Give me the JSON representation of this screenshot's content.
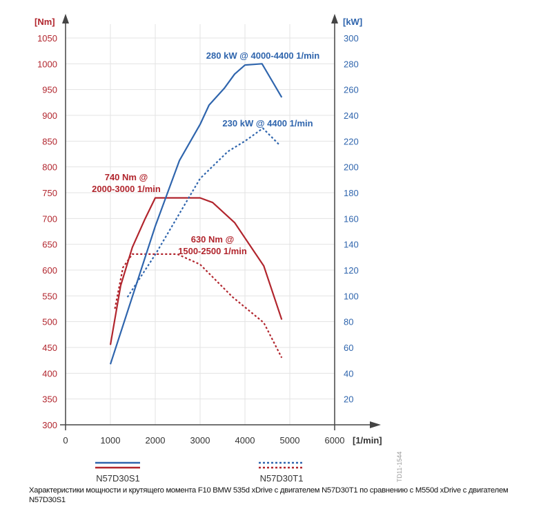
{
  "chart_data": {
    "type": "line",
    "xlabel": "[1/min]",
    "ylabel_left": "[Nm]",
    "ylabel_right": "[kW]",
    "xlim": [
      0,
      6000
    ],
    "ylim_left": [
      300,
      1050
    ],
    "ylim_right": [
      0,
      300
    ],
    "x_ticks": [
      "0",
      "1000",
      "2000",
      "3000",
      "4000",
      "5000",
      "6000"
    ],
    "y_left_ticks": [
      "300",
      "350",
      "400",
      "450",
      "500",
      "550",
      "600",
      "650",
      "700",
      "750",
      "800",
      "850",
      "900",
      "950",
      "1000",
      "1050"
    ],
    "y_right_ticks": [
      "20",
      "40",
      "60",
      "80",
      "100",
      "120",
      "140",
      "160",
      "180",
      "200",
      "220",
      "240",
      "260",
      "280",
      "300"
    ],
    "grid": true,
    "colors": {
      "torque": "#b1252d",
      "power": "#2f65ad",
      "left_ticks": "#b1252d",
      "right_ticks": "#2f65ad"
    },
    "series": [
      {
        "name": "N57D30S1 torque",
        "axis": "left",
        "style": "solid",
        "color": "#b1252d",
        "x": [
          1000,
          1230,
          1490,
          1770,
          2000,
          3000,
          3280,
          3770,
          4420,
          4820
        ],
        "y": [
          455,
          570,
          644,
          699,
          740,
          740,
          731,
          692,
          608,
          504
        ]
      },
      {
        "name": "N57D30T1 torque",
        "axis": "left",
        "style": "dashed",
        "color": "#b1252d",
        "x": [
          1100,
          1280,
          1490,
          2490,
          3000,
          3720,
          4420,
          4820
        ],
        "y": [
          525,
          605,
          631,
          631,
          611,
          548,
          498,
          430
        ]
      },
      {
        "name": "N57D30S1 power",
        "axis": "right",
        "style": "solid",
        "color": "#2f65ad",
        "x": [
          1000,
          2000,
          2540,
          3000,
          3200,
          3540,
          3770,
          4000,
          4380,
          4820
        ],
        "y": [
          47,
          154,
          205,
          233,
          248,
          261,
          272,
          279,
          280,
          254
        ]
      },
      {
        "name": "N57D30T1 power",
        "axis": "right",
        "style": "dashed",
        "color": "#2f65ad",
        "x": [
          1380,
          2000,
          3000,
          3620,
          4000,
          4400,
          4770
        ],
        "y": [
          99,
          132,
          191,
          212,
          220,
          230,
          217
        ]
      }
    ],
    "annotations": [
      {
        "lines": [
          "280 kW @ 4000-4400 1/min"
        ],
        "color": "#2f65ad"
      },
      {
        "lines": [
          "230 kW @ 4400 1/min"
        ],
        "color": "#2f65ad"
      },
      {
        "lines": [
          "740 Nm @",
          "2000-3000 1/min"
        ],
        "color": "#b1252d"
      },
      {
        "lines": [
          "630 Nm @",
          "1500-2500 1/min"
        ],
        "color": "#b1252d"
      }
    ],
    "legend": [
      {
        "label": "N57D30S1",
        "style": "solid"
      },
      {
        "label": "N57D30T1",
        "style": "dashed"
      }
    ],
    "figure_code": "TD11-1544"
  },
  "caption": "Характеристики мощности и крутящего момента F10 BMW 535d xDrive с двигателем N57D30T1 по сравнению с M550d xDrive с двигателем N57D30S1"
}
